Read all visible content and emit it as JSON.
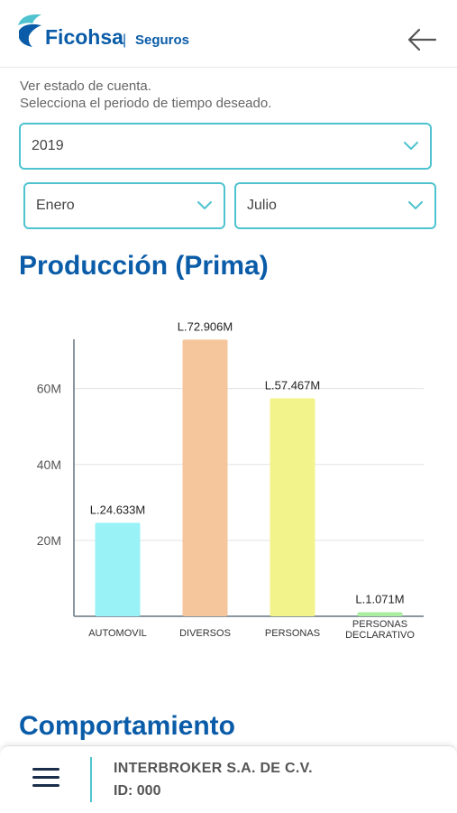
{
  "header": {
    "brand": "Ficohsa",
    "product": "Seguros",
    "back_icon": "arrow-left-icon"
  },
  "intro": {
    "line1": "Ver estado de cuenta.",
    "line2": "Selecciona el periodo de tiempo deseado."
  },
  "filters": {
    "year": "2019",
    "month_from": "Enero",
    "month_to": "Julio"
  },
  "section_titles": {
    "production": "Producción (Prima)",
    "behavior": "Comportamiento"
  },
  "chart_data": {
    "type": "bar",
    "title": "Producción (Prima)",
    "categories": [
      "AUTOMOVIL",
      "DIVERSOS",
      "PERSONAS",
      "PERSONAS DECLARATIVO"
    ],
    "category_lines": [
      [
        "AUTOMOVIL"
      ],
      [
        "DIVERSOS"
      ],
      [
        "PERSONAS"
      ],
      [
        "PERSONAS",
        "DECLARATIVO"
      ]
    ],
    "values": [
      24.633,
      72.906,
      57.467,
      1.071
    ],
    "value_labels": [
      "L.24.633M",
      "L.72.906M",
      "L.57.467M",
      "L.1.071M"
    ],
    "colors": [
      "#98f2f6",
      "#f5c59b",
      "#f3f38c",
      "#a8ee9e"
    ],
    "yticks": [
      "20M",
      "40M",
      "60M"
    ],
    "ytick_values": [
      20,
      40,
      60
    ],
    "ylim": [
      0,
      73
    ],
    "grid": true
  },
  "footer": {
    "menu_icon": "hamburger-menu-icon",
    "company": "INTERBROKER S.A. DE C.V.",
    "id_line": "ID: 000"
  }
}
